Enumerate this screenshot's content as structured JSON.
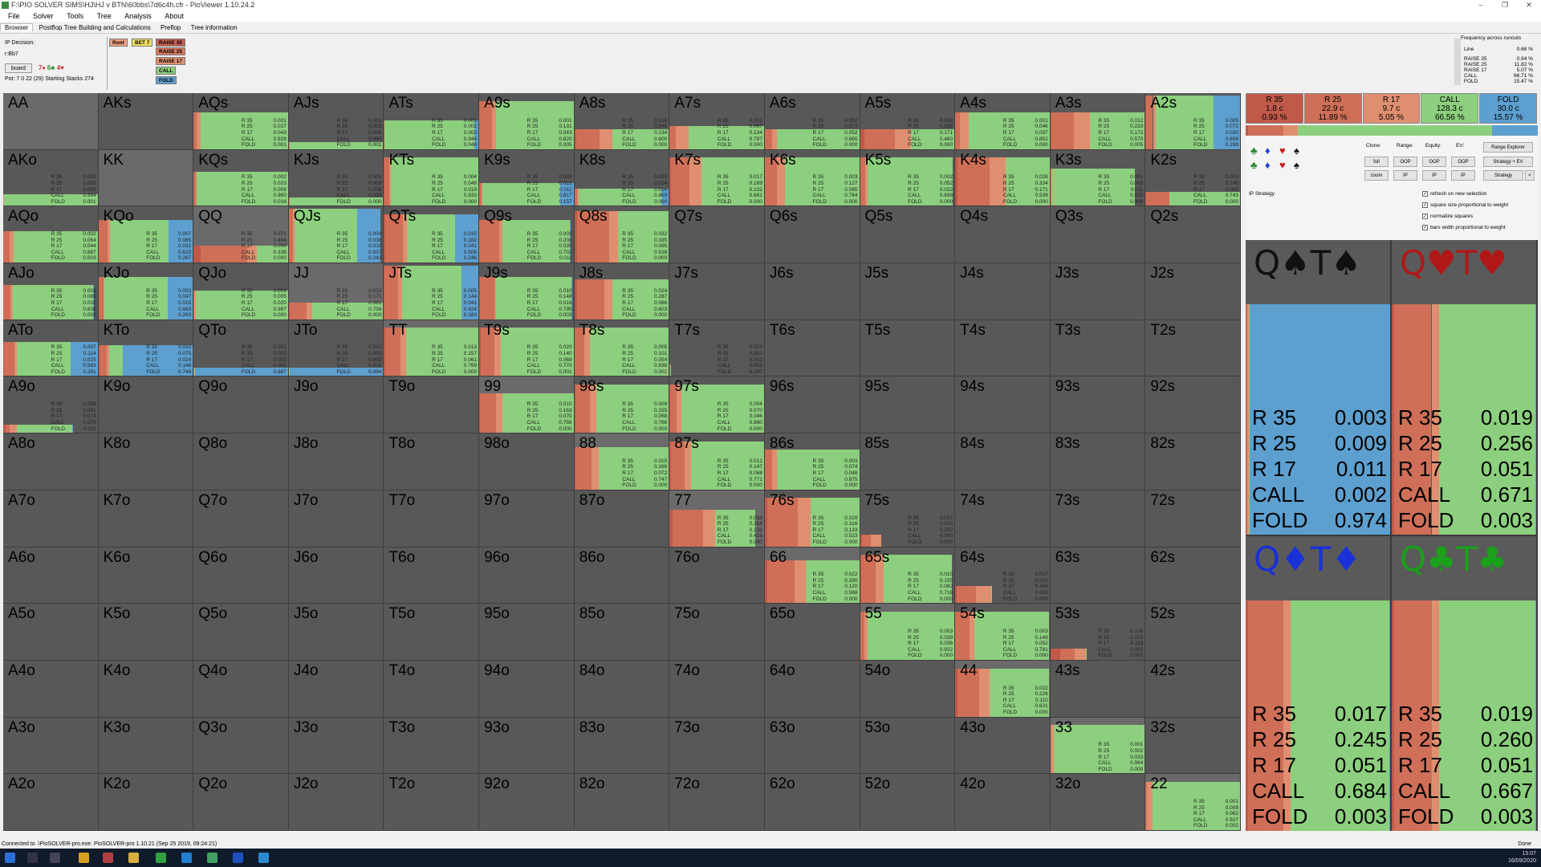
{
  "window": {
    "title": "F:\\PIO SOLVER SIMS\\HJ\\HJ v BTN\\60bbs\\7d6c4h.cfr - PioViewer 1.10.24.2",
    "controls": [
      "–",
      "❐",
      "✕"
    ]
  },
  "menu": [
    "File",
    "Solver",
    "Tools",
    "Tree",
    "Analysis",
    "About"
  ],
  "tabs": [
    "Browser",
    "Postflop Tree Building and Calculations",
    "Preflop",
    "Tree information"
  ],
  "controls": {
    "ip_decision": "IP Decision:",
    "line": "r:Bb7",
    "board_button": "board",
    "board_cards": [
      {
        "t": "7♦",
        "c": "#c83030"
      },
      {
        "t": "6♣",
        "c": "#2a8a2a"
      },
      {
        "t": "4♥",
        "c": "#c83030"
      }
    ],
    "pot": "Pot: 7 0 22 (29) Starting Stacks 274",
    "actions": [
      {
        "label": "Root",
        "bg": "#f0a080"
      },
      {
        "label": "BET 7",
        "bg": "#f2e060"
      },
      {
        "label": "RAISE 35",
        "bg": "#c86050"
      },
      {
        "label": "RAISE 25",
        "bg": "#d87860"
      },
      {
        "label": "RAISE 17",
        "bg": "#e09070"
      },
      {
        "label": "CALL",
        "bg": "#8fcf7f"
      },
      {
        "label": "FOLD",
        "bg": "#5f9fcf"
      }
    ]
  },
  "freq": {
    "title": "Frequency across runouts",
    "rows": [
      {
        "l": "Line",
        "v": "0.68 %"
      },
      {
        "l": "RAISE 35",
        "v": "0.94 %"
      },
      {
        "l": "RAISE 25",
        "v": "11.82 %"
      },
      {
        "l": "RAISE 17",
        "v": "5.07 %"
      },
      {
        "l": "CALL",
        "v": "66.71 %"
      },
      {
        "l": "FOLD",
        "v": "15.47 %"
      }
    ]
  },
  "action_colors": {
    "r35": "#c0594a",
    "r25": "#cf6f58",
    "r17": "#df8f70",
    "call": "#8ccf7e",
    "fold": "#5d9fcf"
  },
  "grid": [
    [
      "AA",
      "AKs",
      "AQs",
      "AJs",
      "ATs",
      "A9s",
      "A8s",
      "A7s",
      "A6s",
      "A5s",
      "A4s",
      "A3s",
      "A2s"
    ],
    [
      "AKo",
      "KK",
      "KQs",
      "KJs",
      "KTs",
      "K9s",
      "K8s",
      "K7s",
      "K6s",
      "K5s",
      "K4s",
      "K3s",
      "K2s"
    ],
    [
      "AQo",
      "KQo",
      "QQ",
      "QJs",
      "QTs",
      "Q9s",
      "Q8s",
      "Q7s",
      "Q6s",
      "Q5s",
      "Q4s",
      "Q3s",
      "Q2s"
    ],
    [
      "AJo",
      "KJo",
      "QJo",
      "JJ",
      "JTs",
      "J9s",
      "J8s",
      "J7s",
      "J6s",
      "J5s",
      "J4s",
      "J3s",
      "J2s"
    ],
    [
      "ATo",
      "KTo",
      "QTo",
      "JTo",
      "TT",
      "T9s",
      "T8s",
      "T7s",
      "T6s",
      "T5s",
      "T4s",
      "T3s",
      "T2s"
    ],
    [
      "A9o",
      "K9o",
      "Q9o",
      "J9o",
      "T9o",
      "99",
      "98s",
      "97s",
      "96s",
      "95s",
      "94s",
      "93s",
      "92s"
    ],
    [
      "A8o",
      "K8o",
      "Q8o",
      "J8o",
      "T8o",
      "98o",
      "88",
      "87s",
      "86s",
      "85s",
      "84s",
      "83s",
      "82s"
    ],
    [
      "A7o",
      "K7o",
      "Q7o",
      "J7o",
      "T7o",
      "97o",
      "87o",
      "77",
      "76s",
      "75s",
      "74s",
      "73s",
      "72s"
    ],
    [
      "A6o",
      "K6o",
      "Q6o",
      "J6o",
      "T6o",
      "96o",
      "86o",
      "76o",
      "66",
      "65s",
      "64s",
      "63s",
      "62s"
    ],
    [
      "A5o",
      "K5o",
      "Q5o",
      "J5o",
      "T5o",
      "95o",
      "85o",
      "75o",
      "65o",
      "55",
      "54s",
      "53s",
      "52s"
    ],
    [
      "A4o",
      "K4o",
      "Q4o",
      "J4o",
      "T4o",
      "94o",
      "84o",
      "74o",
      "64o",
      "54o",
      "44",
      "43s",
      "42s"
    ],
    [
      "A3o",
      "K3o",
      "Q3o",
      "J3o",
      "T3o",
      "93o",
      "83o",
      "73o",
      "63o",
      "53o",
      "43o",
      "33",
      "32s"
    ],
    [
      "A2o",
      "K2o",
      "Q2o",
      "J2o",
      "T2o",
      "92o",
      "82o",
      "72o",
      "62o",
      "52o",
      "42o",
      "32o",
      "22"
    ]
  ],
  "hands": {
    "AQs": {
      "h": 0.65,
      "r": [
        0.001,
        0.027,
        0.043,
        0.929,
        0.001
      ]
    },
    "AJs": {
      "h": 0.12,
      "r": [
        0.001,
        0.003,
        0.006,
        0.99,
        0.001
      ]
    },
    "ATs": {
      "h": 0.5,
      "r": [
        0.001,
        0.002,
        0.003,
        0.944,
        0.049
      ]
    },
    "A9s": {
      "h": 0.85,
      "r": [
        0.001,
        0.131,
        0.043,
        0.82,
        0.005
      ]
    },
    "A8s": {
      "h": 0.35,
      "r": [
        0.016,
        0.248,
        0.134,
        0.6,
        0.0
      ]
    },
    "A7s": {
      "h": 0.4,
      "r": [
        0.001,
        0.067,
        0.134,
        0.797,
        0.0
      ]
    },
    "A6s": {
      "h": 0.35,
      "r": [
        0.002,
        0.073,
        0.052,
        0.865,
        0.0
      ]
    },
    "A5s": {
      "h": 0.35,
      "r": [
        0.048,
        0.318,
        0.171,
        0.46,
        0.0
      ]
    },
    "A4s": {
      "h": 0.65,
      "r": [
        0.001,
        0.046,
        0.097,
        0.852,
        0.0
      ]
    },
    "A3s": {
      "h": 0.65,
      "r": [
        0.012,
        0.233,
        0.172,
        0.57,
        0.005
      ]
    },
    "A2s": {
      "h": 0.95,
      "r": [
        0.005,
        0.072,
        0.03,
        0.609,
        0.299
      ]
    },
    "AKo": {
      "h": 0.2,
      "r": [
        0.001,
        0.002,
        0.003,
        0.994,
        0.001
      ]
    },
    "KQs": {
      "h": 0.6,
      "r": [
        0.002,
        0.023,
        0.009,
        0.96,
        0.016
      ]
    },
    "KJs": {
      "h": 0.15,
      "r": [
        0.001,
        0.003,
        0.006,
        0.99,
        0.0
      ]
    },
    "KTs": {
      "h": 0.85,
      "r": [
        0.004,
        0.049,
        0.019,
        0.933,
        0.0
      ]
    },
    "K9s": {
      "h": 0.4,
      "r": [
        0.003,
        0.022,
        0.011,
        0.817,
        0.157
      ]
    },
    "K8s": {
      "h": 0.3,
      "r": [
        0.003,
        0.024,
        0.014,
        0.869,
        0.09
      ]
    },
    "K7s": {
      "h": 0.85,
      "r": [
        0.017,
        0.189,
        0.132,
        0.661,
        0.0
      ]
    },
    "K6s": {
      "h": 0.85,
      "r": [
        0.003,
        0.127,
        0.085,
        0.784,
        0.0
      ]
    },
    "K5s": {
      "h": 0.85,
      "r": [
        0.002,
        0.052,
        0.022,
        0.896,
        0.0
      ]
    },
    "K4s": {
      "h": 0.85,
      "r": [
        0.028,
        0.334,
        0.171,
        0.539,
        0.0
      ]
    },
    "K3s": {
      "h": 0.65,
      "r": [
        0.001,
        0.005,
        0.011,
        0.87,
        0.0
      ]
    },
    "K2s": {
      "h": 0.25,
      "r": [
        0.003,
        0.245,
        0.003,
        0.743,
        0.0
      ]
    },
    "AQo": {
      "h": 0.55,
      "r": [
        0.002,
        0.064,
        0.044,
        0.887,
        0.003
      ]
    },
    "KQo": {
      "h": 0.75,
      "r": [
        0.007,
        0.085,
        0.031,
        0.61,
        0.267
      ]
    },
    "QQ": {
      "h": 0.3,
      "r": [
        0.071,
        0.494,
        0.099,
        0.338,
        0.0
      ]
    },
    "QJs": {
      "h": 0.95,
      "r": [
        0.004,
        0.038,
        0.018,
        0.657,
        0.243
      ]
    },
    "QTs": {
      "h": 0.85,
      "r": [
        0.015,
        0.182,
        0.041,
        0.506,
        0.246
      ]
    },
    "Q9s": {
      "h": 0.75,
      "r": [
        0.003,
        0.208,
        0.035,
        0.702,
        0.011
      ]
    },
    "Q8s": {
      "h": 0.9,
      "r": [
        0.032,
        0.335,
        0.095,
        0.538,
        0.0
      ]
    },
    "AJo": {
      "h": 0.6,
      "r": [
        0.003,
        0.069,
        0.032,
        0.838,
        0.003
      ]
    },
    "KJo": {
      "h": 0.75,
      "r": [
        0.003,
        0.047,
        0.015,
        0.663,
        0.263
      ]
    },
    "QJo": {
      "h": 0.5,
      "r": [
        0.001,
        0.005,
        0.02,
        0.987,
        0.0
      ]
    },
    "JJ": {
      "h": 0.3,
      "r": [
        0.012,
        0.171,
        0.061,
        0.756,
        0.0
      ]
    },
    "JTs": {
      "h": 0.95,
      "r": [
        0.005,
        0.144,
        0.041,
        0.624,
        0.183
      ]
    },
    "J9s": {
      "h": 0.75,
      "r": [
        0.01,
        0.148,
        0.016,
        0.795,
        0.003
      ]
    },
    "J8s": {
      "h": 0.7,
      "r": [
        0.024,
        0.287,
        0.086,
        0.603,
        0.0
      ]
    },
    "ATo": {
      "h": 0.6,
      "r": [
        0.007,
        0.114,
        0.025,
        0.563,
        0.291
      ]
    },
    "KTo": {
      "h": 0.55,
      "r": [
        0.01,
        0.075,
        0.024,
        0.146,
        0.746
      ]
    },
    "QTo": {
      "h": 0.15,
      "r": [
        0.002,
        0.002,
        0.002,
        0.005,
        0.987
      ]
    },
    "JTo": {
      "h": 0.15,
      "r": [
        0.002,
        0.001,
        0.002,
        0.002,
        0.984
      ]
    },
    "TT": {
      "h": 0.85,
      "r": [
        0.013,
        0.157,
        0.061,
        0.769,
        0.0
      ]
    },
    "T9s": {
      "h": 0.85,
      "r": [
        0.02,
        0.14,
        0.069,
        0.77,
        0.001
      ]
    },
    "T8s": {
      "h": 0.85,
      "r": [
        0.005,
        0.101,
        0.054,
        0.838,
        0.002
      ]
    },
    "T7s": {
      "h": 0.2,
      "r": [
        0.003,
        0.002,
        0.002,
        0.003,
        0.0
      ]
    },
    "A9o": {
      "h": 0.15,
      "r": [
        0.028,
        0.041,
        0.074,
        0.578,
        0.011
      ]
    },
    "99": {
      "h": 0.7,
      "r": [
        0.01,
        0.163,
        0.07,
        0.756,
        0.0
      ]
    },
    "98s": {
      "h": 0.85,
      "r": [
        0.009,
        0.155,
        0.068,
        0.766,
        0.0
      ]
    },
    "97s": {
      "h": 0.85,
      "r": [
        0.004,
        0.07,
        0.046,
        0.88,
        0.0
      ]
    },
    "88": {
      "h": 0.75,
      "r": [
        0.015,
        0.166,
        0.072,
        0.747,
        0.0
      ]
    },
    "87s": {
      "h": 0.85,
      "r": [
        0.012,
        0.147,
        0.068,
        0.771,
        0.0
      ]
    },
    "86s": {
      "h": 0.7,
      "r": [
        0.003,
        0.074,
        0.048,
        0.875,
        0.0
      ]
    },
    "77": {
      "h": 0.65,
      "r": [
        0.033,
        0.316,
        0.131,
        0.419,
        0.0
      ]
    },
    "76s": {
      "h": 0.85,
      "r": [
        0.029,
        0.316,
        0.133,
        0.523,
        0.0
      ]
    },
    "75s": {
      "h": 0.2,
      "r": [
        0.017,
        0.1,
        0.102,
        0.0,
        0.0
      ]
    },
    "66": {
      "h": 0.75,
      "r": [
        0.022,
        0.29,
        0.12,
        0.568,
        0.0
      ]
    },
    "65s": {
      "h": 0.85,
      "r": [
        0.01,
        0.155,
        0.082,
        0.718,
        0.0
      ]
    },
    "64s": {
      "h": 0.3,
      "r": [
        0.017,
        0.201,
        0.164,
        0.008,
        0.0
      ]
    },
    "55": {
      "h": 0.85,
      "r": [
        0.003,
        0.039,
        0.036,
        0.922,
        0.0
      ]
    },
    "54s": {
      "h": 0.85,
      "r": [
        0.003,
        0.149,
        0.052,
        0.781,
        0.0
      ]
    },
    "53s": {
      "h": 0.2,
      "r": [
        0.1,
        0.151,
        0.118,
        0.002,
        0.0
      ]
    },
    "44": {
      "h": 0.85,
      "r": [
        0.022,
        0.226,
        0.11,
        0.631,
        0.0
      ]
    },
    "33": {
      "h": 0.85,
      "r": [
        0.001,
        0.002,
        0.033,
        0.964,
        0.0
      ]
    },
    "22": {
      "h": 0.85,
      "r": [
        0.001,
        0.009,
        0.062,
        0.927,
        0.002
      ]
    }
  },
  "strategy": {
    "labels": [
      "R 35",
      "R 25",
      "R 17",
      "CALL",
      "FOLD"
    ],
    "summary": [
      {
        "label": "R 35",
        "ev": "1.8 c",
        "pct": "0.93 %"
      },
      {
        "label": "R 25",
        "ev": "22.9 c",
        "pct": "11.89 %"
      },
      {
        "label": "R 17",
        "ev": "9.7 c",
        "pct": "5.05 %"
      },
      {
        "label": "CALL",
        "ev": "128.3 c",
        "pct": "66.56 %"
      },
      {
        "label": "FOLD",
        "ev": "30.0 c",
        "pct": "15.57 %"
      }
    ],
    "summary_fracs": [
      0.0093,
      0.1189,
      0.0505,
      0.6656,
      0.1557
    ]
  },
  "right_panel": {
    "clone": "Clone:",
    "range": "Range:",
    "equity": "Equity:",
    "ev": "EV:",
    "range_explorer": "Range Explorer",
    "row1": [
      "full",
      "OOP",
      "OOP",
      "OOP",
      "Strategy + EV"
    ],
    "row2": [
      "zoom",
      "IP",
      "IP",
      "IP",
      "Strategy",
      "<"
    ],
    "ip_strategy": "IP Strategy",
    "checks": [
      "refresh on new selection",
      "square size proportional to weight",
      "normalize squares",
      "bars width proportional to weight"
    ],
    "suits1": [
      {
        "t": "♣",
        "c": "#2a8a2a"
      },
      {
        "t": "♦",
        "c": "#2040d0"
      },
      {
        "t": "♥",
        "c": "#c82020"
      },
      {
        "t": "♠",
        "c": "#111"
      }
    ],
    "suits2": [
      {
        "t": "♣",
        "c": "#2a8a2a"
      },
      {
        "t": "♦",
        "c": "#2040d0"
      },
      {
        "t": "♥",
        "c": "#c82020"
      },
      {
        "t": "♠",
        "c": "#111"
      }
    ]
  },
  "combos": [
    {
      "head": "Q♠T♠",
      "color": "#111",
      "r": [
        0.003,
        0.009,
        0.011,
        0.002,
        0.974
      ]
    },
    {
      "head": "Q♥T♥",
      "color": "#b01818",
      "r": [
        0.019,
        0.256,
        0.051,
        0.671,
        0.003
      ]
    },
    {
      "head": "Q♦T♦",
      "color": "#1a30d8",
      "r": [
        0.017,
        0.245,
        0.051,
        0.684,
        0.003
      ]
    },
    {
      "head": "Q♣T♣",
      "color": "#1aa01a",
      "r": [
        0.019,
        0.26,
        0.051,
        0.667,
        0.003
      ]
    }
  ],
  "status": {
    "text": "Connected to .\\PioSOLVER-pro.exe. PioSOLVER-pro 1.10.21 (Sep 25 2019, 09:24:21)",
    "done": "Done"
  },
  "taskbar": {
    "time": "15:07",
    "date": "16/09/2020"
  }
}
